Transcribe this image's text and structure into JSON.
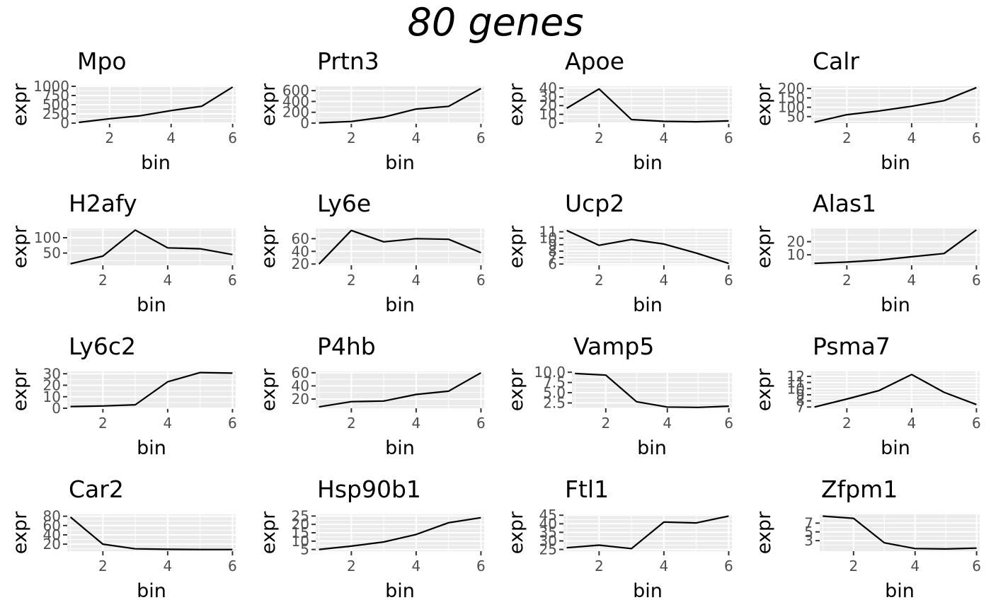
{
  "figure_title": "80 genes",
  "chart_data": [
    {
      "type": "line",
      "title": "Mpo",
      "xlabel": "bin",
      "ylabel": "expr",
      "x": [
        1,
        2,
        3,
        4,
        5,
        6
      ],
      "y": [
        20,
        120,
        200,
        340,
        460,
        980
      ],
      "xlim": [
        0.9,
        6.1
      ],
      "ylim": [
        0,
        1000
      ],
      "xticks": [
        2,
        4,
        6
      ],
      "yticks": [
        0,
        250,
        500,
        750,
        1000
      ],
      "ytick_labels": [
        "0",
        "250",
        "500",
        "750",
        "1000"
      ]
    },
    {
      "type": "line",
      "title": "Prtn3",
      "xlabel": "bin",
      "ylabel": "expr",
      "x": [
        1,
        2,
        3,
        4,
        5,
        6
      ],
      "y": [
        5,
        30,
        110,
        260,
        310,
        640
      ],
      "xlim": [
        0.9,
        6.1
      ],
      "ylim": [
        0,
        680
      ],
      "xticks": [
        2,
        4,
        6
      ],
      "yticks": [
        0,
        200,
        400,
        600
      ],
      "ytick_labels": [
        "0",
        "200",
        "400",
        "600"
      ]
    },
    {
      "type": "line",
      "title": "Apoe",
      "xlabel": "bin",
      "ylabel": "expr",
      "x": [
        1,
        2,
        3,
        4,
        5,
        6
      ],
      "y": [
        17,
        39,
        4,
        2,
        1.5,
        2.5
      ],
      "xlim": [
        0.9,
        6.1
      ],
      "ylim": [
        0,
        42
      ],
      "xticks": [
        2,
        4,
        6
      ],
      "yticks": [
        0,
        10,
        20,
        30,
        40
      ],
      "ytick_labels": [
        "0",
        "10",
        "20",
        "30",
        "40"
      ]
    },
    {
      "type": "line",
      "title": "Calr",
      "xlabel": "bin",
      "ylabel": "expr",
      "x": [
        1,
        2,
        3,
        4,
        5,
        6
      ],
      "y": [
        20,
        60,
        80,
        105,
        135,
        205
      ],
      "xlim": [
        0.9,
        6.1
      ],
      "ylim": [
        15,
        212
      ],
      "xticks": [
        2,
        4,
        6
      ],
      "yticks": [
        50,
        100,
        150,
        200
      ],
      "ytick_labels": [
        "50",
        "100",
        "150",
        "200"
      ]
    },
    {
      "type": "line",
      "title": "H2afy",
      "xlabel": "bin",
      "ylabel": "expr",
      "x": [
        1,
        2,
        3,
        4,
        5,
        6
      ],
      "y": [
        15,
        40,
        125,
        67,
        64,
        45
      ],
      "xlim": [
        0.9,
        6.1
      ],
      "ylim": [
        10,
        130
      ],
      "xticks": [
        2,
        4,
        6
      ],
      "yticks": [
        50,
        100
      ],
      "ytick_labels": [
        "50",
        "100"
      ]
    },
    {
      "type": "line",
      "title": "Ly6e",
      "xlabel": "bin",
      "ylabel": "expr",
      "x": [
        1,
        2,
        3,
        4,
        5,
        6
      ],
      "y": [
        20,
        73,
        55,
        60,
        59,
        38
      ],
      "xlim": [
        0.9,
        6.1
      ],
      "ylim": [
        18,
        76
      ],
      "xticks": [
        2,
        4,
        6
      ],
      "yticks": [
        20,
        40,
        60
      ],
      "ytick_labels": [
        "20",
        "40",
        "60"
      ]
    },
    {
      "type": "line",
      "title": "Ucp2",
      "xlabel": "bin",
      "ylabel": "expr",
      "x": [
        1,
        2,
        3,
        4,
        5,
        6
      ],
      "y": [
        11.2,
        8.9,
        9.8,
        9.1,
        7.7,
        6.1
      ],
      "xlim": [
        0.9,
        6.1
      ],
      "ylim": [
        5.8,
        11.5
      ],
      "xticks": [
        2,
        4,
        6
      ],
      "yticks": [
        6,
        7,
        8,
        9,
        10,
        11
      ],
      "ytick_labels": [
        "6",
        "7",
        "8",
        "9",
        "10",
        "11"
      ]
    },
    {
      "type": "line",
      "title": "Alas1",
      "xlabel": "bin",
      "ylabel": "expr",
      "x": [
        1,
        2,
        3,
        4,
        5,
        6
      ],
      "y": [
        3.5,
        4.5,
        6,
        8.5,
        11,
        29
      ],
      "xlim": [
        0.9,
        6.1
      ],
      "ylim": [
        2,
        30
      ],
      "xticks": [
        2,
        4,
        6
      ],
      "yticks": [
        10,
        20
      ],
      "ytick_labels": [
        "10",
        "20"
      ]
    },
    {
      "type": "line",
      "title": "Ly6c2",
      "xlabel": "bin",
      "ylabel": "expr",
      "x": [
        1,
        2,
        3,
        4,
        5,
        6
      ],
      "y": [
        1.5,
        2,
        3,
        23,
        31,
        30.5
      ],
      "xlim": [
        0.9,
        6.1
      ],
      "ylim": [
        0,
        32
      ],
      "xticks": [
        2,
        4,
        6
      ],
      "yticks": [
        0,
        10,
        20,
        30
      ],
      "ytick_labels": [
        "0",
        "10",
        "20",
        "30"
      ]
    },
    {
      "type": "line",
      "title": "P4hb",
      "xlabel": "bin",
      "ylabel": "expr",
      "x": [
        1,
        2,
        3,
        4,
        5,
        6
      ],
      "y": [
        8,
        16,
        17,
        27,
        32,
        60
      ],
      "xlim": [
        0.9,
        6.1
      ],
      "ylim": [
        6,
        62
      ],
      "xticks": [
        2,
        4,
        6
      ],
      "yticks": [
        20,
        40,
        60
      ],
      "ytick_labels": [
        "20",
        "40",
        "60"
      ]
    },
    {
      "type": "line",
      "title": "Vamp5",
      "xlabel": "bin",
      "ylabel": "expr",
      "x": [
        1,
        2,
        3,
        4,
        5,
        6
      ],
      "y": [
        9.7,
        9.3,
        2.8,
        1.5,
        1.4,
        1.7
      ],
      "xlim": [
        0.9,
        6.1
      ],
      "ylim": [
        1.2,
        10.2
      ],
      "xticks": [
        2,
        4,
        6
      ],
      "yticks": [
        2.5,
        5.0,
        7.5,
        10.0
      ],
      "ytick_labels": [
        "2.5",
        "5.0",
        "7.5",
        "10.0"
      ]
    },
    {
      "type": "line",
      "title": "Psma7",
      "xlabel": "bin",
      "ylabel": "expr",
      "x": [
        1,
        2,
        3,
        4,
        5,
        6
      ],
      "y": [
        7,
        8.3,
        9.7,
        12.3,
        9.4,
        7.4
      ],
      "xlim": [
        0.9,
        6.1
      ],
      "ylim": [
        6.8,
        12.8
      ],
      "xticks": [
        2,
        4,
        6
      ],
      "yticks": [
        7,
        8,
        9,
        10,
        11,
        12
      ],
      "ytick_labels": [
        "7",
        "8",
        "9",
        "10",
        "11",
        "12"
      ]
    },
    {
      "type": "line",
      "title": "Car2",
      "xlabel": "bin",
      "ylabel": "expr",
      "x": [
        1,
        2,
        3,
        4,
        5,
        6
      ],
      "y": [
        78,
        20,
        10,
        9,
        8.5,
        8.5
      ],
      "xlim": [
        0.9,
        6.1
      ],
      "ylim": [
        5,
        84
      ],
      "xticks": [
        2,
        4,
        6
      ],
      "yticks": [
        20,
        40,
        60,
        80
      ],
      "ytick_labels": [
        "20",
        "40",
        "60",
        "80"
      ]
    },
    {
      "type": "line",
      "title": "Hsp90b1",
      "xlabel": "bin",
      "ylabel": "expr",
      "x": [
        1,
        2,
        3,
        4,
        5,
        6
      ],
      "y": [
        5,
        7,
        9.5,
        14,
        21,
        24
      ],
      "xlim": [
        0.9,
        6.1
      ],
      "ylim": [
        4,
        26
      ],
      "xticks": [
        2,
        4,
        6
      ],
      "yticks": [
        5,
        10,
        15,
        20,
        25
      ],
      "ytick_labels": [
        "5",
        "10",
        "15",
        "20",
        "25"
      ]
    },
    {
      "type": "line",
      "title": "Ftl1",
      "xlabel": "bin",
      "ylabel": "expr",
      "x": [
        1,
        2,
        3,
        4,
        5,
        6
      ],
      "y": [
        26,
        27.5,
        25.5,
        41,
        40.5,
        44.5
      ],
      "xlim": [
        0.9,
        6.1
      ],
      "ylim": [
        24,
        45.5
      ],
      "xticks": [
        2,
        4,
        6
      ],
      "yticks": [
        25,
        30,
        35,
        40,
        45
      ],
      "ytick_labels": [
        "25",
        "30",
        "35",
        "40",
        "45"
      ]
    },
    {
      "type": "line",
      "title": "Zfpm1",
      "xlabel": "bin",
      "ylabel": "expr",
      "x": [
        1,
        2,
        3,
        4,
        5,
        6
      ],
      "y": [
        8.6,
        8.1,
        2.5,
        1.2,
        1.1,
        1.3
      ],
      "xlim": [
        0.9,
        6.1
      ],
      "ylim": [
        0.6,
        9.0
      ],
      "xticks": [
        2,
        4,
        6
      ],
      "yticks": [
        3,
        5,
        7
      ],
      "ytick_labels": [
        "3",
        "5",
        "7"
      ]
    }
  ]
}
